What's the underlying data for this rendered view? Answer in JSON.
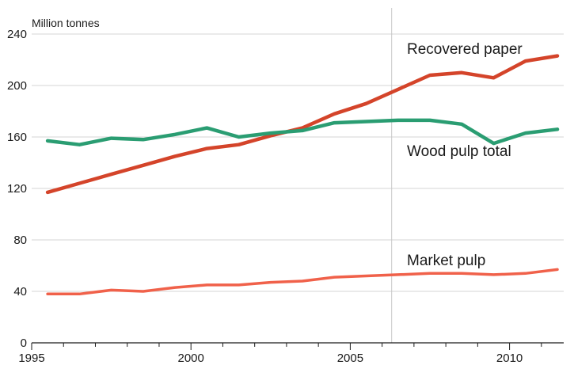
{
  "chart_data": {
    "type": "line",
    "y_unit_label": "Million tonnes",
    "xlim": [
      1995,
      2011.7
    ],
    "ylim": [
      0,
      240
    ],
    "x_ticks": [
      1995,
      2000,
      2005,
      2010
    ],
    "y_ticks": [
      0,
      40,
      80,
      120,
      160,
      200,
      240
    ],
    "grid": "horizontal",
    "reference_line_x": 2006.3,
    "x": [
      1995.5,
      1996.5,
      1997.5,
      1998.5,
      1999.5,
      2000.5,
      2001.5,
      2002.5,
      2003.5,
      2004.5,
      2005.5,
      2006.5,
      2007.5,
      2008.5,
      2009.5,
      2010.5,
      2011.5
    ],
    "series": [
      {
        "name": "Recovered paper",
        "color": "#d4442a",
        "values": [
          117,
          124,
          131,
          138,
          145,
          151,
          154,
          161,
          167,
          178,
          186,
          197,
          208,
          210,
          206,
          219,
          223
        ]
      },
      {
        "name": "Wood pulp total",
        "color": "#2a9d72",
        "values": [
          157,
          154,
          159,
          158,
          162,
          167,
          160,
          163,
          165,
          171,
          172,
          173,
          173,
          170,
          155,
          163,
          166
        ]
      },
      {
        "name": "Market pulp",
        "color": "#f0614a",
        "values": [
          38,
          38,
          41,
          40,
          43,
          45,
          45,
          47,
          48,
          51,
          52,
          53,
          54,
          54,
          53,
          54,
          57
        ]
      }
    ]
  }
}
